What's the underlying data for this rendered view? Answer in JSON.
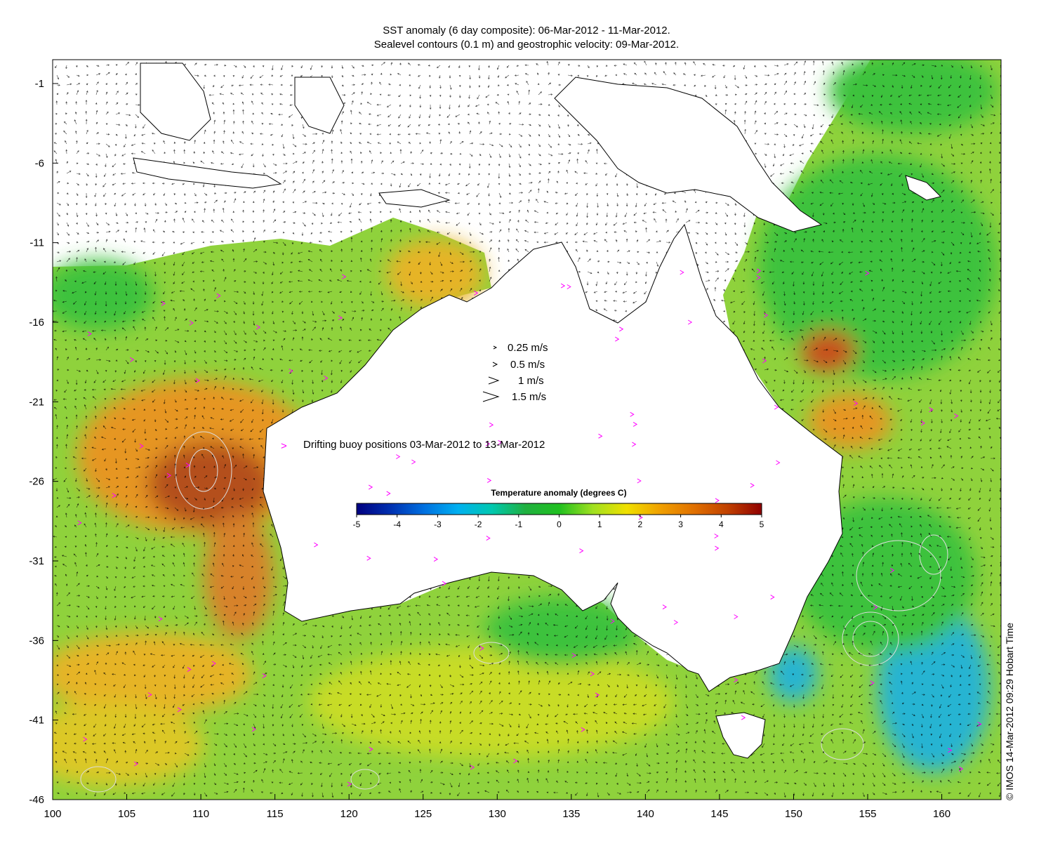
{
  "title_line1": "SST anomaly (6 day composite): 06-Mar-2012 - 11-Mar-2012.",
  "title_line2": "Sealevel contours (0.1 m) and geostrophic velocity: 09-Mar-2012.",
  "credit": "© IMOS 14-Mar-2012 09:29 Hobart Time",
  "x_ticks": [
    "100",
    "105",
    "110",
    "115",
    "120",
    "125",
    "130",
    "135",
    "140",
    "145",
    "150",
    "155",
    "160"
  ],
  "y_ticks": [
    "-1",
    "-6",
    "-11",
    "-16",
    "-21",
    "-26",
    "-31",
    "-36",
    "-41",
    "-46"
  ],
  "velocity_legend": [
    "0.25 m/s",
    "0.5 m/s",
    "1 m/s",
    "1.5 m/s"
  ],
  "buoy_legend": {
    "symbol": ">",
    "label": "Drifting buoy positions 03-Mar-2012 to 13-Mar-2012",
    "color": "#ff00ff"
  },
  "colorbar": {
    "title": "Temperature anomaly (degrees C)",
    "ticks": [
      "-5",
      "-4",
      "-3",
      "-2",
      "-1",
      "0",
      "1",
      "2",
      "3",
      "4",
      "5"
    ],
    "colors": [
      "#000080",
      "#0030b0",
      "#0070e0",
      "#00b0f0",
      "#00c8b0",
      "#20b040",
      "#20c020",
      "#a0e020",
      "#f0e000",
      "#f0a000",
      "#e07000",
      "#c04000",
      "#900000"
    ]
  },
  "map_extent": {
    "lon": [
      100,
      164
    ],
    "lat": [
      -46,
      0.5
    ]
  },
  "palette": {
    "ocean_green": "#3cc23c",
    "ocean_yellow": "#c8dc28",
    "warm_orange": "#e69620",
    "hot_red": "#b4501e",
    "cool_cyan": "#28b4d2",
    "contour_color": "#dddddd",
    "land_color": "#ffffff"
  }
}
